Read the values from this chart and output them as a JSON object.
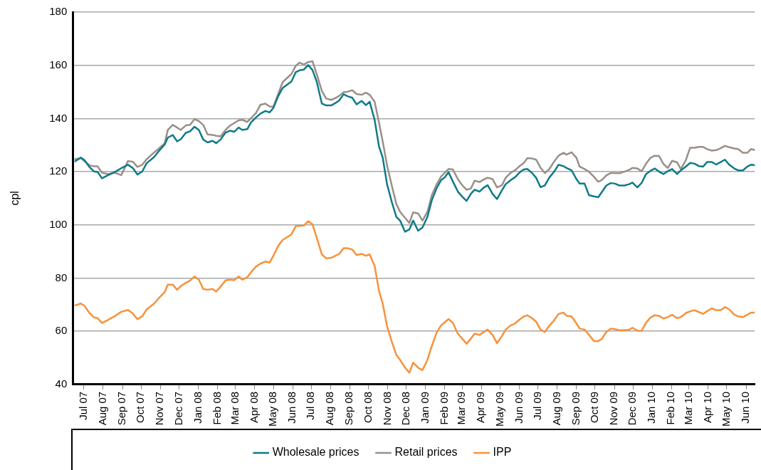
{
  "chart_data": {
    "type": "line",
    "ylabel": "cpl",
    "x": [
      "2007-06-17",
      "2007-06-26",
      "2007-07-02",
      "2007-07-10",
      "2007-07-17",
      "2007-07-23",
      "2007-07-30",
      "2007-08-09",
      "2007-08-20",
      "2007-08-30",
      "2007-09-10",
      "2007-09-18",
      "2007-09-25",
      "2007-10-03",
      "2007-10-10",
      "2007-10-22",
      "2007-10-29",
      "2007-11-08",
      "2007-11-13",
      "2007-11-21",
      "2007-11-28",
      "2007-12-04",
      "2007-12-12",
      "2007-12-19",
      "2007-12-26",
      "2008-01-02",
      "2008-01-09",
      "2008-01-16",
      "2008-01-24",
      "2008-01-30",
      "2008-02-06",
      "2008-02-14",
      "2008-02-21",
      "2008-02-28",
      "2008-03-06",
      "2008-03-12",
      "2008-03-20",
      "2008-03-26",
      "2008-04-03",
      "2008-04-10",
      "2008-04-18",
      "2008-04-25",
      "2008-05-01",
      "2008-05-09",
      "2008-05-16",
      "2008-05-30",
      "2008-06-06",
      "2008-06-12",
      "2008-06-19",
      "2008-06-26",
      "2008-07-03",
      "2008-07-10",
      "2008-07-18",
      "2008-07-25",
      "2008-08-02",
      "2008-08-09",
      "2008-08-15",
      "2008-08-22",
      "2008-08-29",
      "2008-09-05",
      "2008-09-12",
      "2008-09-20",
      "2008-09-27",
      "2008-10-03",
      "2008-10-11",
      "2008-10-18",
      "2008-10-24",
      "2008-10-31",
      "2008-11-08",
      "2008-11-15",
      "2008-11-21",
      "2008-11-29",
      "2008-12-06",
      "2008-12-12",
      "2008-12-20",
      "2008-12-27",
      "2009-01-04",
      "2009-01-11",
      "2009-01-19",
      "2009-01-26",
      "2009-02-01",
      "2009-02-07",
      "2009-02-14",
      "2009-02-22",
      "2009-03-01",
      "2009-03-08",
      "2009-03-15",
      "2009-03-21",
      "2009-03-29",
      "2009-04-04",
      "2009-04-11",
      "2009-04-19",
      "2009-04-26",
      "2009-05-04",
      "2009-05-10",
      "2009-05-18",
      "2009-05-25",
      "2009-06-01",
      "2009-06-08",
      "2009-06-14",
      "2009-06-21",
      "2009-06-28",
      "2009-07-05",
      "2009-07-12",
      "2009-07-19",
      "2009-07-27",
      "2009-08-03",
      "2009-08-11",
      "2009-08-16",
      "2009-08-24",
      "2009-09-01",
      "2009-09-06",
      "2009-09-14",
      "2009-09-21",
      "2009-09-29",
      "2009-10-06",
      "2009-10-12",
      "2009-10-19",
      "2009-10-26",
      "2009-11-02",
      "2009-11-09",
      "2009-11-17",
      "2009-11-25",
      "2009-11-30",
      "2009-12-08",
      "2009-12-15",
      "2009-12-22",
      "2009-12-29",
      "2010-01-05",
      "2010-01-12",
      "2010-01-19",
      "2010-01-26",
      "2010-02-02",
      "2010-02-10",
      "2010-02-16",
      "2010-02-24",
      "2010-03-03",
      "2010-03-10",
      "2010-03-17",
      "2010-03-24",
      "2010-03-30",
      "2010-04-07",
      "2010-04-14",
      "2010-04-21",
      "2010-04-28",
      "2010-05-05",
      "2010-05-13",
      "2010-05-19",
      "2010-05-27",
      "2010-06-03",
      "2010-06-09",
      "2010-06-15"
    ],
    "series": [
      {
        "name": "Wholesale prices",
        "color": "#0e7b8a",
        "values": [
          123.9,
          125.3,
          124.3,
          121.7,
          120.1,
          119.9,
          117.5,
          118.7,
          119.9,
          121.3,
          122.6,
          121.3,
          118.9,
          120.1,
          123.2,
          125.5,
          127.6,
          130.2,
          132.8,
          133.8,
          131.4,
          132.2,
          134.6,
          135.2,
          136.9,
          135.7,
          132.1,
          131,
          131.6,
          130.7,
          132.1,
          134.7,
          135.4,
          135,
          136.6,
          135.7,
          136,
          138.5,
          140.4,
          141.8,
          142.8,
          142.3,
          144,
          148.5,
          151.5,
          153.9,
          157.4,
          158.1,
          158.4,
          160.1,
          158.2,
          153.7,
          145.6,
          144.9,
          144.9,
          145.8,
          146.8,
          149.1,
          148.3,
          147.8,
          145.3,
          146.6,
          145,
          146.3,
          139.5,
          129.5,
          125.3,
          115.3,
          108.3,
          103,
          101.6,
          97.4,
          98.3,
          101.6,
          97.8,
          99,
          103,
          109.2,
          113.9,
          116.8,
          117.9,
          119.8,
          116.3,
          112.5,
          110.6,
          109,
          111.7,
          113.2,
          112.5,
          113.9,
          114.9,
          111.6,
          109.7,
          113,
          115.3,
          116.8,
          117.9,
          119.6,
          120.8,
          121,
          119.6,
          117.7,
          114.2,
          114.8,
          117.7,
          120,
          122.6,
          122.1,
          121.4,
          120.5,
          117.2,
          115.5,
          115.5,
          111.2,
          110.7,
          110.4,
          112.4,
          114.8,
          115.7,
          115.5,
          114.8,
          114.8,
          115.3,
          115.9,
          114.1,
          115.8,
          119.1,
          120.3,
          121.2,
          120,
          119.1,
          120.2,
          121,
          119.1,
          120.5,
          121.9,
          123.3,
          123,
          122.1,
          121.9,
          123.6,
          123.6,
          122.7,
          123.6,
          124.5,
          122.6,
          121.2,
          120.5,
          120.5,
          121.9,
          122.6,
          122.4
        ]
      },
      {
        "name": "Retail prices",
        "color": "#9a8f88",
        "values": [
          124.7,
          125.1,
          123.9,
          122.4,
          122,
          122,
          119.6,
          119.1,
          119.6,
          118.7,
          124.0,
          123.7,
          121.8,
          122.6,
          124.7,
          127.2,
          128.6,
          130.7,
          135.7,
          137.6,
          136.6,
          135.7,
          137.4,
          137.6,
          139.8,
          139,
          137.6,
          134,
          133.8,
          133.5,
          133.3,
          135.7,
          137.3,
          138.3,
          139.3,
          139.5,
          138.7,
          140.1,
          142.1,
          145.1,
          145.6,
          144.5,
          144.4,
          149.4,
          153.7,
          156.7,
          159.8,
          161,
          160.3,
          161.2,
          161.5,
          156.5,
          150.4,
          147.5,
          147,
          147.7,
          148.5,
          149.9,
          150.1,
          150.6,
          149.2,
          148.9,
          149.7,
          148.9,
          146.3,
          138.5,
          131.4,
          122.4,
          114.4,
          107.8,
          104.9,
          102.6,
          100.7,
          104.7,
          104.3,
          101.6,
          104.9,
          111.1,
          115.3,
          118.2,
          119.6,
          121,
          120.8,
          117.2,
          114.9,
          113.2,
          113.7,
          116.6,
          116.1,
          117,
          117.7,
          117.2,
          114.1,
          114.9,
          117.7,
          119.6,
          120.5,
          122,
          123.2,
          125.1,
          125,
          124.5,
          121.5,
          119.5,
          120.9,
          123.8,
          126,
          127.1,
          126.4,
          127.3,
          125.2,
          121.9,
          121,
          120,
          118.1,
          116.2,
          116.9,
          118.6,
          119.5,
          119.5,
          119.4,
          120,
          120.7,
          121.4,
          121.2,
          120.2,
          123,
          125.2,
          126,
          125.9,
          122.9,
          121.4,
          124.1,
          123.5,
          121,
          124.3,
          129,
          129,
          129.3,
          129.3,
          128.5,
          127.9,
          128.1,
          128.8,
          129.7,
          129.2,
          128.7,
          128.5,
          127.1,
          127.1,
          128.5,
          128.1
        ]
      },
      {
        "name": "IPP",
        "color": "#f7923a",
        "values": [
          69.7,
          70.4,
          69.5,
          66.8,
          65.2,
          64.9,
          63.1,
          64.3,
          65.7,
          67.3,
          68.0,
          66.6,
          64.5,
          65.7,
          68.2,
          70.4,
          72.3,
          74.7,
          77.5,
          77.5,
          75.6,
          77.0,
          78.2,
          79.1,
          80.6,
          79.4,
          75.9,
          75.6,
          75.9,
          74.9,
          76.8,
          79.1,
          79.4,
          79.2,
          80.6,
          79.4,
          80.3,
          82.2,
          84.3,
          85.4,
          86.2,
          85.8,
          88.4,
          92.2,
          94.3,
          96.4,
          99.5,
          99.6,
          99.7,
          101.4,
          100.2,
          95,
          88.9,
          87.4,
          87.6,
          88.4,
          89.1,
          91.2,
          91.2,
          90.7,
          88.6,
          89.1,
          88.4,
          88.9,
          84.6,
          75.2,
          70.4,
          61.9,
          55.8,
          51.1,
          49.2,
          46.3,
          44.4,
          48.2,
          46.3,
          45.4,
          49.2,
          54.4,
          59.6,
          62.2,
          63.4,
          64.6,
          63.1,
          59.1,
          57.2,
          55.3,
          57.2,
          59.1,
          58.6,
          59.6,
          60.6,
          58.6,
          55.5,
          58.2,
          60.6,
          62.2,
          62.9,
          64.3,
          65.5,
          66,
          65,
          63.6,
          60.6,
          59.7,
          62,
          64.1,
          66.5,
          67,
          65.8,
          65.6,
          62.9,
          61,
          60.6,
          58.7,
          56.3,
          56.3,
          57.2,
          59.7,
          61,
          60.8,
          60.4,
          60.4,
          60.6,
          61.3,
          60.2,
          60.2,
          63.2,
          65.1,
          66,
          65.8,
          64.8,
          65.3,
          66.2,
          64.9,
          65.3,
          66.8,
          67.5,
          67.9,
          67.2,
          66.5,
          67.5,
          68.6,
          67.9,
          67.9,
          69.1,
          68.2,
          66.2,
          65.6,
          65.3,
          66.2,
          67,
          67
        ]
      }
    ],
    "xlim": [
      "2007-06-13",
      "2010-06-15"
    ],
    "xticks": [
      {
        "value": "2007-07-01",
        "label": "Jul 07"
      },
      {
        "value": "2007-08-01",
        "label": "Aug 07"
      },
      {
        "value": "2007-09-01",
        "label": "Sep 07"
      },
      {
        "value": "2007-10-01",
        "label": "Oct 07"
      },
      {
        "value": "2007-11-01",
        "label": "Nov 07"
      },
      {
        "value": "2007-12-01",
        "label": "Dec 07"
      },
      {
        "value": "2008-01-01",
        "label": "Jan 08"
      },
      {
        "value": "2008-02-01",
        "label": "Feb 08"
      },
      {
        "value": "2008-03-01",
        "label": "Mar 08"
      },
      {
        "value": "2008-04-01",
        "label": "Apr 08"
      },
      {
        "value": "2008-05-01",
        "label": "May 08"
      },
      {
        "value": "2008-06-01",
        "label": "Jun 08"
      },
      {
        "value": "2008-07-01",
        "label": "Jul 08"
      },
      {
        "value": "2008-08-01",
        "label": "Aug 08"
      },
      {
        "value": "2008-09-01",
        "label": "Sep 08"
      },
      {
        "value": "2008-10-01",
        "label": "Oct 08"
      },
      {
        "value": "2008-11-01",
        "label": "Nov 08"
      },
      {
        "value": "2008-12-01",
        "label": "Dec 08"
      },
      {
        "value": "2009-01-01",
        "label": "Jan 09"
      },
      {
        "value": "2009-02-01",
        "label": "Feb 09"
      },
      {
        "value": "2009-03-01",
        "label": "Mar 09"
      },
      {
        "value": "2009-04-01",
        "label": "Apr 09"
      },
      {
        "value": "2009-05-01",
        "label": "May 09"
      },
      {
        "value": "2009-06-01",
        "label": "Jun 09"
      },
      {
        "value": "2009-07-01",
        "label": "Jul 09"
      },
      {
        "value": "2009-08-01",
        "label": "Aug 09"
      },
      {
        "value": "2009-09-01",
        "label": "Sep 09"
      },
      {
        "value": "2009-10-01",
        "label": "Oct 09"
      },
      {
        "value": "2009-11-01",
        "label": "Nov 09"
      },
      {
        "value": "2009-12-01",
        "label": "Dec 09"
      },
      {
        "value": "2010-01-01",
        "label": "Jan 10"
      },
      {
        "value": "2010-02-01",
        "label": "Feb 10"
      },
      {
        "value": "2010-03-01",
        "label": "Mar 10"
      },
      {
        "value": "2010-04-01",
        "label": "Apr 10"
      },
      {
        "value": "2010-05-01",
        "label": "May 10"
      },
      {
        "value": "2010-06-01",
        "label": "Jun 10"
      }
    ],
    "ylim": [
      40,
      180
    ],
    "yticks": [
      40,
      60,
      80,
      100,
      120,
      140,
      160,
      180
    ],
    "grid": "y",
    "legend": "bottom",
    "marker": "none",
    "line_style": "solid"
  }
}
